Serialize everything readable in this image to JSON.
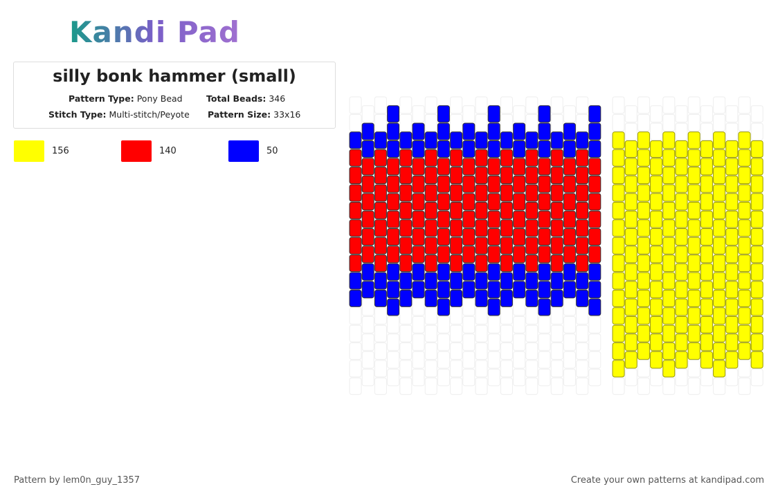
{
  "logo": "Kandi Pad",
  "title": "silly bonk hammer (small)",
  "details": {
    "pattern_type": {
      "label": "Pattern Type:",
      "value": "Pony Bead"
    },
    "total_beads": {
      "label": "Total Beads:",
      "value": "346"
    },
    "stitch_type": {
      "label": "Stitch Type:",
      "value": "Multi-stitch/Peyote"
    },
    "pattern_size": {
      "label": "Pattern Size:",
      "value": "33x16"
    }
  },
  "legend": [
    {
      "color": "#ffff00",
      "count": "156"
    },
    {
      "color": "#ff0000",
      "count": "140"
    },
    {
      "color": "#0000ff",
      "count": "50"
    }
  ],
  "footer": {
    "author": "Pattern by lem0n_guy_1357",
    "site": "Create your own patterns at kandipad.com"
  }
}
